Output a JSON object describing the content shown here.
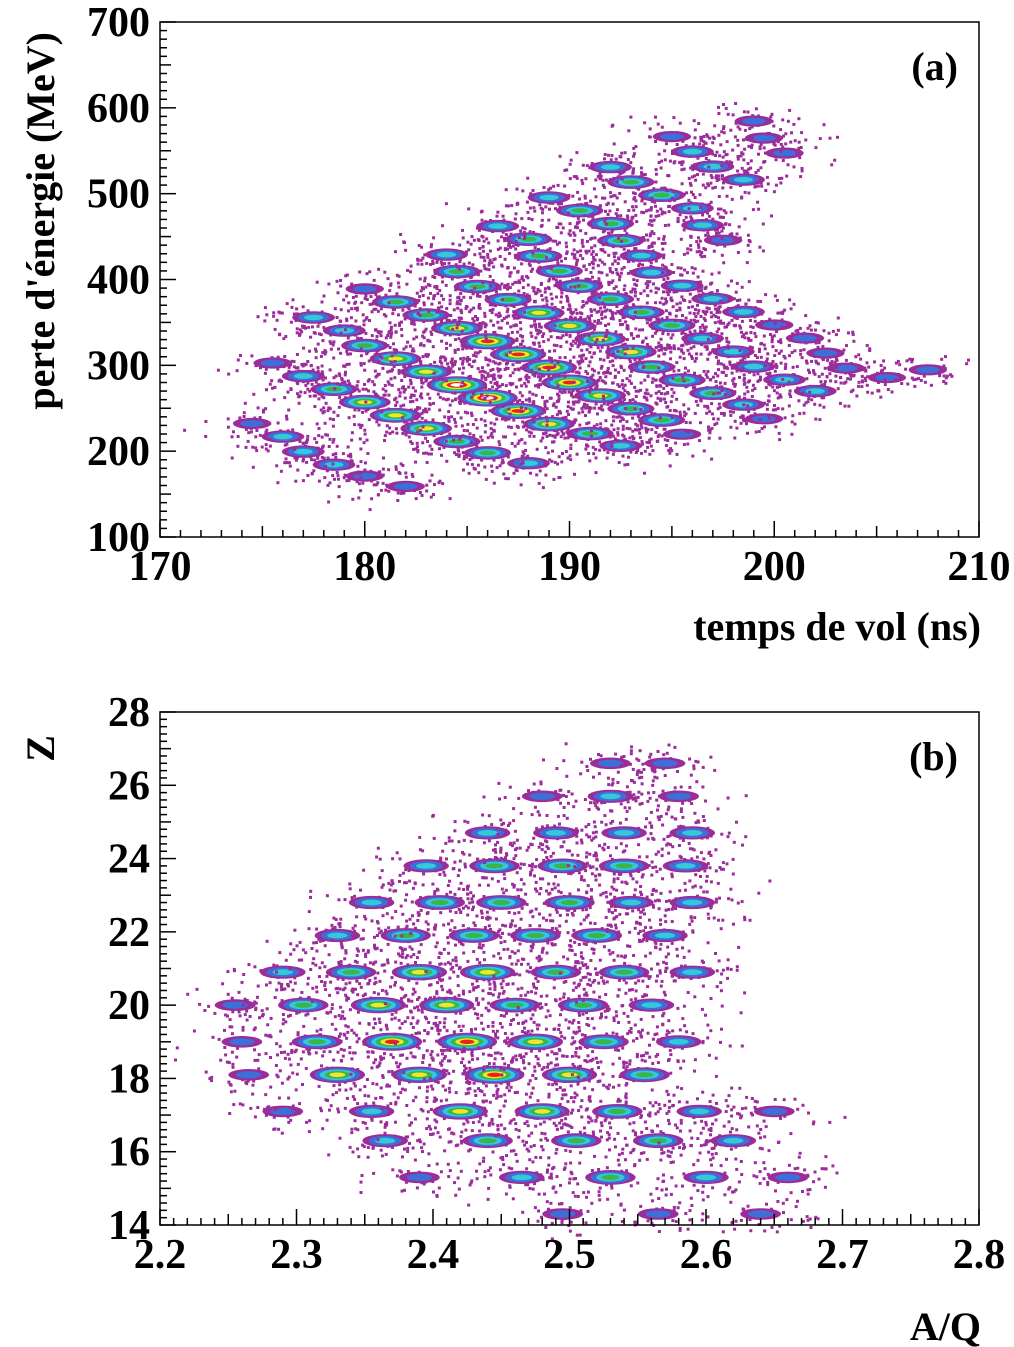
{
  "chart_data": [
    {
      "type": "heatmap",
      "panel_label": "(a)",
      "xlabel": "temps de vol (ns)",
      "ylabel": "perte d'énergie (MeV)",
      "xlim": [
        170,
        210
      ],
      "ylim": [
        100,
        700
      ],
      "xticks": [
        170,
        180,
        190,
        200,
        210
      ],
      "yticks": [
        100,
        200,
        300,
        400,
        500,
        600,
        700
      ],
      "grid": false,
      "colors": [
        "#9b2d9b",
        "#3c6fd8",
        "#35c8d8",
        "#39b54a",
        "#f2e62a",
        "#e8231e",
        "#ffffff"
      ],
      "slope": 3.6,
      "bands": [
        {
          "y0": 150,
          "x": [
            182,
            188,
            192.5,
            195.5,
            199.5
          ],
          "peak": [
            1,
            2,
            2,
            1,
            1
          ]
        },
        {
          "y0": 171,
          "x": [
            180,
            186,
            191,
            194.5,
            198.5,
            202,
            205.5,
            207.5
          ],
          "peak": [
            1,
            3,
            3,
            3,
            2,
            2,
            1,
            1
          ]
        },
        {
          "y0": 191,
          "x": [
            178.5,
            184.5,
            189,
            193,
            197,
            200.5,
            203.5
          ],
          "peak": [
            2,
            3,
            4,
            3,
            3,
            2,
            1
          ]
        },
        {
          "y0": 213,
          "x": [
            177,
            183,
            187.5,
            191.5,
            195.5,
            199,
            202.5
          ],
          "peak": [
            2,
            4,
            5,
            4,
            3,
            2,
            1
          ]
        },
        {
          "y0": 235,
          "x": [
            176,
            181.5,
            186,
            190,
            194,
            198,
            201.5
          ],
          "peak": [
            2,
            4,
            6,
            5,
            3,
            2,
            1
          ]
        },
        {
          "y0": 257,
          "x": [
            174.5,
            180,
            184.5,
            189,
            193,
            196.5,
            200
          ],
          "peak": [
            1,
            4,
            6,
            5,
            4,
            2,
            1
          ]
        },
        {
          "y0": 279,
          "x": [
            178.5,
            183,
            187.5,
            191.5,
            195,
            198.5
          ],
          "peak": [
            3,
            4,
            5,
            4,
            3,
            2
          ]
        },
        {
          "y0": 301,
          "x": [
            177,
            181.5,
            186,
            190,
            193.5,
            197
          ],
          "peak": [
            2,
            4,
            5,
            4,
            3,
            2
          ]
        },
        {
          "y0": 323,
          "x": [
            175.5,
            180,
            184.5,
            188.5,
            192,
            195.5
          ],
          "peak": [
            1,
            3,
            4,
            4,
            3,
            2
          ]
        },
        {
          "y0": 345,
          "x": [
            179,
            183,
            187,
            190.5,
            194
          ],
          "peak": [
            2,
            3,
            3,
            3,
            2
          ]
        },
        {
          "y0": 367,
          "x": [
            177.5,
            181.5,
            185.5,
            189.5,
            193.5,
            197.5
          ],
          "peak": [
            2,
            3,
            3,
            3,
            2,
            1
          ]
        },
        {
          "y0": 389,
          "x": [
            180,
            184.5,
            188.5,
            192.5,
            196.5
          ],
          "peak": [
            1,
            3,
            3,
            3,
            2
          ]
        },
        {
          "y0": 411,
          "x": [
            184,
            188,
            192,
            196
          ],
          "peak": [
            2,
            3,
            3,
            2
          ]
        },
        {
          "y0": 433,
          "x": [
            186.5,
            190.5,
            194.5,
            198.5
          ],
          "peak": [
            2,
            3,
            3,
            2
          ]
        },
        {
          "y0": 455,
          "x": [
            189,
            193,
            197,
            200.5
          ],
          "peak": [
            2,
            3,
            2,
            1
          ]
        },
        {
          "y0": 477,
          "x": [
            192,
            196,
            199.5
          ],
          "peak": [
            2,
            2,
            1
          ]
        },
        {
          "y0": 499,
          "x": [
            195,
            199
          ],
          "peak": [
            1,
            1
          ]
        }
      ]
    },
    {
      "type": "heatmap",
      "panel_label": "(b)",
      "xlabel": "A/Q",
      "ylabel": "Z",
      "xlim": [
        2.2,
        2.8
      ],
      "ylim": [
        14,
        28
      ],
      "xticks": [
        "2.2",
        "2.3",
        "2.4",
        "2.5",
        "2.6",
        "2.7",
        "2.8"
      ],
      "yticks": [
        14,
        16,
        18,
        20,
        22,
        24,
        26,
        28
      ],
      "grid": false,
      "colors": [
        "#9b2d9b",
        "#3c6fd8",
        "#35c8d8",
        "#39b54a",
        "#f2e62a",
        "#e8231e",
        "#ffffff"
      ],
      "bands": [
        {
          "z": 14.3,
          "x": [
            2.495,
            2.565,
            2.64
          ],
          "peak": [
            1,
            1,
            1
          ]
        },
        {
          "z": 15.3,
          "x": [
            2.39,
            2.465,
            2.53,
            2.6,
            2.66
          ],
          "peak": [
            1,
            2,
            3,
            2,
            1
          ]
        },
        {
          "z": 16.3,
          "x": [
            2.365,
            2.44,
            2.505,
            2.565,
            2.62
          ],
          "peak": [
            2,
            3,
            3,
            3,
            2
          ]
        },
        {
          "z": 17.1,
          "x": [
            2.29,
            2.355,
            2.42,
            2.48,
            2.535,
            2.595,
            2.65
          ],
          "peak": [
            1,
            2,
            4,
            4,
            3,
            2,
            1
          ]
        },
        {
          "z": 18.1,
          "x": [
            2.265,
            2.33,
            2.39,
            2.445,
            2.5,
            2.555
          ],
          "peak": [
            1,
            4,
            4,
            5,
            4,
            3
          ]
        },
        {
          "z": 19.0,
          "x": [
            2.26,
            2.315,
            2.37,
            2.425,
            2.475,
            2.525,
            2.58
          ],
          "peak": [
            1,
            3,
            5,
            5,
            4,
            3,
            2
          ]
        },
        {
          "z": 20.0,
          "x": [
            2.255,
            2.305,
            2.36,
            2.41,
            2.46,
            2.51,
            2.56
          ],
          "peak": [
            1,
            3,
            4,
            4,
            3,
            3,
            2
          ]
        },
        {
          "z": 20.9,
          "x": [
            2.29,
            2.34,
            2.39,
            2.44,
            2.49,
            2.54,
            2.59
          ],
          "peak": [
            2,
            3,
            4,
            4,
            3,
            3,
            2
          ]
        },
        {
          "z": 21.9,
          "x": [
            2.33,
            2.38,
            2.43,
            2.475,
            2.52,
            2.57
          ],
          "peak": [
            2,
            3,
            3,
            3,
            3,
            2
          ]
        },
        {
          "z": 22.8,
          "x": [
            2.355,
            2.405,
            2.45,
            2.5,
            2.545,
            2.59
          ],
          "peak": [
            2,
            3,
            3,
            3,
            2,
            2
          ]
        },
        {
          "z": 23.8,
          "x": [
            2.395,
            2.445,
            2.495,
            2.54,
            2.585
          ],
          "peak": [
            2,
            3,
            3,
            3,
            2
          ]
        },
        {
          "z": 24.7,
          "x": [
            2.44,
            2.49,
            2.54,
            2.59
          ],
          "peak": [
            2,
            2,
            2,
            2
          ]
        },
        {
          "z": 25.7,
          "x": [
            2.48,
            2.53,
            2.58
          ],
          "peak": [
            1,
            2,
            1
          ]
        },
        {
          "z": 26.6,
          "x": [
            2.53,
            2.57
          ],
          "peak": [
            1,
            1
          ]
        }
      ]
    }
  ]
}
